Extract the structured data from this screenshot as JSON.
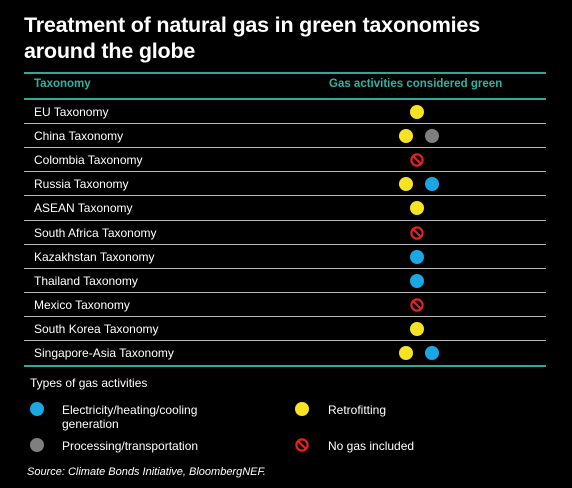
{
  "title": "Treatment of natural gas in green taxonomies around the globe",
  "colors": {
    "electricity": "#1aa7e6",
    "processing": "#7f7f7f",
    "retrofitting": "#f8e322",
    "no_gas": "#e0241b",
    "header": "#2fb3a6"
  },
  "chart_data": {
    "type": "table",
    "columns": [
      "Taxonomy",
      "Gas activities considered green"
    ],
    "rows": [
      {
        "taxonomy": "EU Taxonomy",
        "activities": [
          "retrofitting"
        ]
      },
      {
        "taxonomy": "China Taxonomy",
        "activities": [
          "retrofitting",
          "processing"
        ]
      },
      {
        "taxonomy": "Colombia Taxonomy",
        "activities": [
          "no_gas"
        ]
      },
      {
        "taxonomy": "Russia Taxonomy",
        "activities": [
          "retrofitting",
          "electricity"
        ]
      },
      {
        "taxonomy": "ASEAN Taxonomy",
        "activities": [
          "retrofitting"
        ]
      },
      {
        "taxonomy": "South Africa Taxonomy",
        "activities": [
          "no_gas"
        ]
      },
      {
        "taxonomy": "Kazakhstan Taxonomy",
        "activities": [
          "electricity"
        ]
      },
      {
        "taxonomy": "Thailand Taxonomy",
        "activities": [
          "electricity"
        ]
      },
      {
        "taxonomy": "Mexico Taxonomy",
        "activities": [
          "no_gas"
        ]
      },
      {
        "taxonomy": "South Korea Taxonomy",
        "activities": [
          "retrofitting"
        ]
      },
      {
        "taxonomy": "Singapore-Asia Taxonomy",
        "activities": [
          "retrofitting",
          "electricity"
        ]
      }
    ],
    "legend_title": "Types of gas activities",
    "legend": [
      {
        "key": "electricity",
        "label": "Electricity/heating/cooling generation"
      },
      {
        "key": "retrofitting",
        "label": "Retrofitting"
      },
      {
        "key": "processing",
        "label": "Processing/transportation"
      },
      {
        "key": "no_gas",
        "label": "No gas included"
      }
    ],
    "source": "Source: Climate Bonds Initiative, BloombergNEF."
  }
}
